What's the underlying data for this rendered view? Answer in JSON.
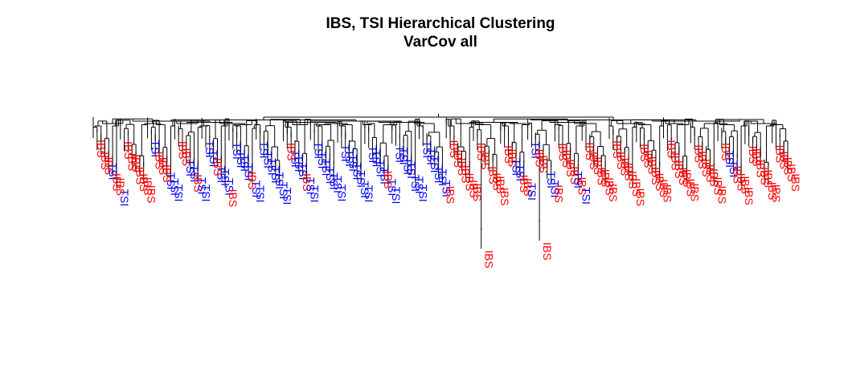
{
  "chart_data": {
    "type": "dendrogram",
    "title": "IBS, TSI Hierarchical Clustering",
    "subtitle": "VarCov all",
    "series": [
      {
        "name": "IBS",
        "color": "#ff0000"
      },
      {
        "name": "TSI",
        "color": "#0000ff"
      }
    ],
    "leaves": [
      "IBS",
      "IBS",
      "IBS",
      "TSI",
      "IBS",
      "IBS",
      "TSI",
      "IBS",
      "IBS",
      "IBS",
      "IBS",
      "IBS",
      "IBS",
      "IBS",
      "TSI",
      "IBS",
      "IBS",
      "IBS",
      "TSI",
      "TSI",
      "TSI",
      "IBS",
      "IBS",
      "TSI",
      "TSI",
      "IBS",
      "TSI",
      "TSI",
      "TSI",
      "TSI",
      "IBS",
      "TSI",
      "TSI",
      "TSI",
      "IBS",
      "TSI",
      "TSI",
      "TSI",
      "TSI",
      "IBS",
      "TSI",
      "TSI",
      "TSI",
      "TSI",
      "TSI",
      "TSI",
      "TSI",
      "TSI",
      "TSI",
      "IBS",
      "TSI",
      "TSI",
      "TSI",
      "IBS",
      "TSI",
      "TSI",
      "TSI",
      "TSI",
      "TSI",
      "TSI",
      "TSI",
      "TSI",
      "TSI",
      "TSI",
      "TSI",
      "TSI",
      "TSI",
      "TSI",
      "TSI",
      "TSI",
      "TSI",
      "TSI",
      "TSI",
      "TSI",
      "IBS",
      "TSI",
      "TSI",
      "TSI",
      "TSI",
      "TSI",
      "TSI",
      "TSI",
      "TSI",
      "TSI",
      "TSI",
      "TSI",
      "TSI",
      "TSI",
      "TSI",
      "TSI",
      "IBS",
      "IBS",
      "IBS",
      "IBS",
      "IBS",
      "IBS",
      "IBS",
      "IBS",
      "IBS",
      "IBS",
      "IBS",
      "IBS",
      "IBS",
      "IBS",
      "IBS",
      "IBS",
      "IBS",
      "TSI",
      "TSI",
      "IBS",
      "IBS",
      "TSI",
      "TSI",
      "IBS",
      "IBS",
      "IBS",
      "TSI",
      "TSI",
      "IBS",
      "IBS",
      "IBS",
      "IBS",
      "IBS",
      "TSI",
      "IBS",
      "TSI",
      "IBS",
      "IBS",
      "IBS",
      "IBS",
      "IBS",
      "IBS",
      "IBS",
      "IBS",
      "IBS",
      "IBS",
      "IBS",
      "IBS",
      "IBS",
      "IBS",
      "IBS",
      "IBS",
      "IBS",
      "IBS",
      "IBS",
      "IBS",
      "IBS",
      "IBS",
      "IBS",
      "IBS",
      "IBS",
      "IBS",
      "IBS",
      "IBS",
      "IBS",
      "IBS",
      "IBS",
      "IBS",
      "IBS",
      "IBS",
      "IBS",
      "IBS",
      "TSI",
      "TSI",
      "IBS",
      "IBS",
      "IBS",
      "IBS",
      "IBS",
      "IBS",
      "IBS",
      "IBS",
      "IBS",
      "IBS",
      "IBS",
      "IBS",
      "IBS",
      "IBS",
      "IBS",
      "IBS"
    ]
  }
}
